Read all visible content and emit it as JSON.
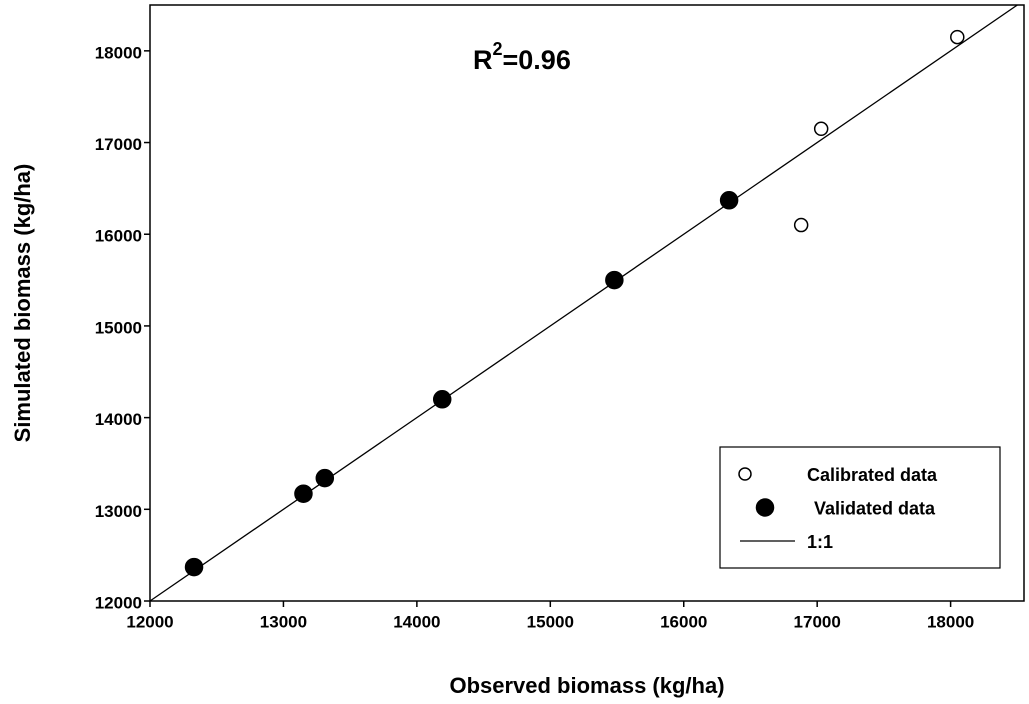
{
  "chart_data": {
    "type": "scatter",
    "x_label": "Observed biomass (kg/ha)",
    "y_label": "Simulated biomass (kg/ha)",
    "annotation": [
      "R",
      "2",
      "=0.96"
    ],
    "xlim": [
      12000,
      18550
    ],
    "ylim": [
      12000,
      18500
    ],
    "xticks": [
      12000,
      13000,
      14000,
      15000,
      16000,
      17000,
      18000
    ],
    "yticks": [
      12000,
      13000,
      14000,
      15000,
      16000,
      17000,
      18000
    ],
    "grid": false,
    "legend": "lower-right",
    "series": [
      {
        "name": "Calibrated data",
        "type": "scatter",
        "marker": "open",
        "color": "#000000",
        "x": [
          18050,
          17030,
          16880
        ],
        "values": [
          18150,
          17150,
          16100
        ]
      },
      {
        "name": "Validated data",
        "type": "scatter",
        "marker": "filled",
        "color": "#000000",
        "x": [
          12330,
          13150,
          13310,
          14190,
          15480,
          16340
        ],
        "values": [
          12370,
          13170,
          13340,
          14200,
          15500,
          16370
        ]
      },
      {
        "name": "1:1",
        "type": "line",
        "color": "#000000",
        "x": [
          12000,
          18500
        ],
        "values": [
          12000,
          18500
        ]
      }
    ]
  }
}
